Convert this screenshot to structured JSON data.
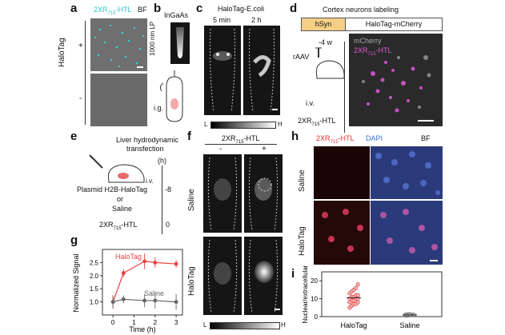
{
  "panels": {
    "a": {
      "label": "a",
      "probe_main": "2XR",
      "probe_sub": "715",
      "probe_tail": "-HTL",
      "bf": "BF",
      "side_label": "HaloTag",
      "plus": "+",
      "minus": "-"
    },
    "b": {
      "label": "b",
      "detector": "InGaAs",
      "filter": "1000 nm LP",
      "route": "i.g."
    },
    "c": {
      "label": "c",
      "title": "HaloTag-E.coli",
      "t1": "5 min",
      "t2": "2 h",
      "low": "L",
      "high": "H"
    },
    "d": {
      "label": "d",
      "title": "Cortex neurons labeling",
      "promoter": "hSyn",
      "construct": "HaloTag-mCherry",
      "week": "-4 w",
      "virus": "rAAV",
      "route": "i.v.",
      "probe_main": "2XR",
      "probe_sub": "715",
      "probe_tail": "-HTL",
      "ch_mcherry": "mCherry",
      "ch_probe_main": "2XR",
      "ch_probe_sub": "715",
      "ch_probe_tail": "-HTL"
    },
    "e": {
      "label": "e",
      "title1": "Liver hydrodynamic",
      "title2": "transfection",
      "unit": "(h)",
      "route": "i.v.",
      "plasmid": "Plasmid H2B-HaloTag",
      "or": "or",
      "saline": "Saline",
      "t_pre": "-8",
      "probe_main": "2XR",
      "probe_sub": "715",
      "probe_tail": "-HTL",
      "t_zero": "0"
    },
    "f": {
      "label": "f",
      "probe_main": "2XR",
      "probe_sub": "715",
      "probe_tail": "-HTL",
      "minus": "-",
      "plus": "+",
      "row1": "Saline",
      "row2": "HaloTag",
      "low": "L",
      "high": "H"
    },
    "h": {
      "label": "h",
      "probe_main": "2XR",
      "probe_sub": "715",
      "probe_tail": "-HTL",
      "dapi": "DAPI",
      "bf": "BF",
      "row1": "Saline",
      "row2": "HaloTag"
    },
    "g": {
      "label": "g"
    },
    "i": {
      "label": "i"
    }
  },
  "colors": {
    "halotag": "#e84040",
    "saline": "#666666",
    "probe": "#e03030",
    "dapi": "#3a6fd8",
    "cyan": "#27c5c8",
    "magenta": "#e05ad8"
  },
  "chart_data": [
    {
      "type": "line",
      "panel": "g",
      "xlabel": "Time (h)",
      "ylabel": "Normalized Signal",
      "xlim": [
        -0.5,
        3.3
      ],
      "ylim": [
        0.5,
        3.0
      ],
      "xticks": [
        "0",
        "1",
        "2",
        "3"
      ],
      "yticks": [
        "1.0",
        "1.5",
        "2.0",
        "2.5"
      ],
      "series": [
        {
          "name": "HaloTag",
          "x": [
            0,
            0.5,
            1.5,
            2,
            3
          ],
          "y": [
            1.0,
            2.1,
            2.55,
            2.5,
            2.45
          ],
          "err": [
            0.25,
            0.15,
            0.3,
            0.2,
            0.15
          ]
        },
        {
          "name": "Saline",
          "x": [
            0,
            0.5,
            1.5,
            2,
            3
          ],
          "y": [
            1.0,
            1.1,
            1.05,
            1.05,
            1.0
          ],
          "err": [
            0.25,
            0.15,
            0.25,
            0.3,
            0.3
          ]
        }
      ]
    },
    {
      "type": "scatter",
      "panel": "i",
      "ylabel": "Nuclear/extracellular",
      "categories": [
        "HaloTag",
        "Saline"
      ],
      "ylim": [
        0,
        25
      ],
      "yticks": [
        "0",
        "10",
        "20"
      ],
      "series": [
        {
          "name": "HaloTag",
          "values": [
            5,
            6,
            7,
            7,
            8,
            8,
            9,
            9,
            10,
            10,
            10,
            11,
            11,
            12,
            12,
            13,
            14,
            15,
            16,
            18
          ]
        },
        {
          "name": "Saline",
          "values": [
            0.5,
            0.7,
            0.8,
            1.0,
            1.0,
            1.1,
            1.2,
            1.3
          ]
        }
      ]
    }
  ]
}
